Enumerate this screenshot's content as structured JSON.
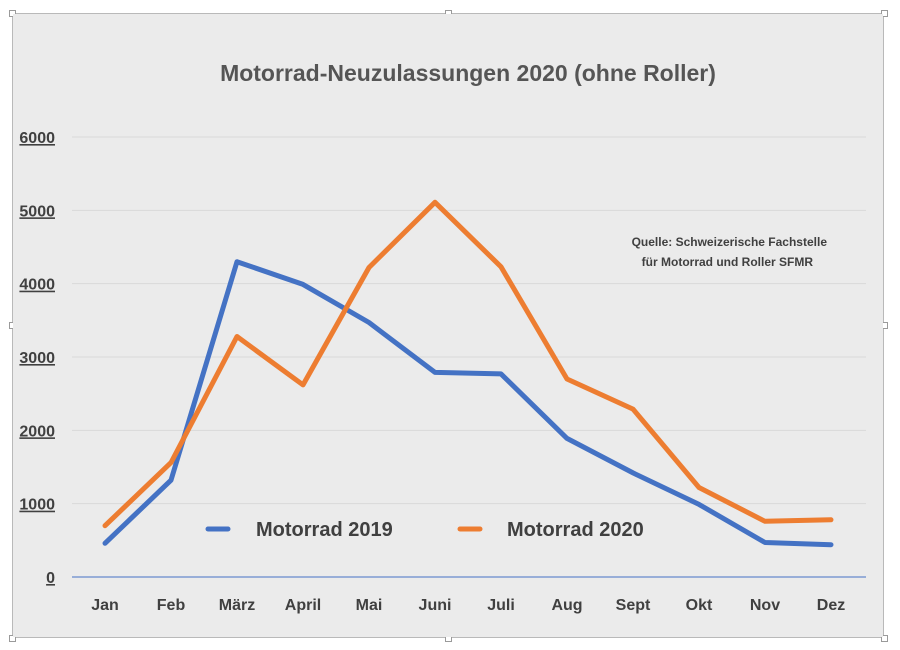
{
  "colors": {
    "background": "#ebebeb",
    "grid": "#d9d9d9",
    "axis": "#4472c4",
    "series_2019": "#4472c4",
    "series_2020": "#ed7d31"
  },
  "chart_data": {
    "type": "line",
    "title": "Motorrad-Neuzulassungen 2020 (ohne Roller)",
    "xlabel": "",
    "ylabel": "",
    "categories": [
      "Jan",
      "Feb",
      "März",
      "April",
      "Mai",
      "Juni",
      "Juli",
      "Aug",
      "Sept",
      "Okt",
      "Nov",
      "Dez"
    ],
    "ylim": [
      0,
      6000
    ],
    "yticks": [
      "0",
      "1000",
      "2000",
      "3000",
      "4000",
      "5000",
      "6000"
    ],
    "grid": true,
    "legend_position": "bottom-center inside plot",
    "series": [
      {
        "name": "Motorrad 2019",
        "color": "#4472c4",
        "values": [
          460,
          1320,
          4300,
          3990,
          3470,
          2790,
          2770,
          1890,
          1420,
          990,
          470,
          440
        ]
      },
      {
        "name": "Motorrad 2020",
        "color": "#ed7d31",
        "values": [
          700,
          1560,
          3280,
          2620,
          4220,
          5110,
          4230,
          2700,
          2290,
          1220,
          760,
          780
        ]
      }
    ],
    "annotations": [
      "Quelle: Schweizerische Fachstelle",
      "für Motorrad und Roller SFMR"
    ]
  }
}
